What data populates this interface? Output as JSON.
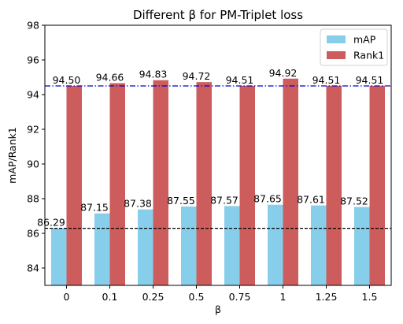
{
  "chart_data": {
    "type": "bar",
    "title": "Different β for PM-Triplet loss",
    "xlabel": "β",
    "ylabel": "mAP/Rank1",
    "categories": [
      "0",
      "0.1",
      "0.25",
      "0.5",
      "0.75",
      "1",
      "1.25",
      "1.5"
    ],
    "ylim": [
      83,
      98
    ],
    "yticks": [
      84,
      86,
      88,
      90,
      92,
      94,
      96,
      98
    ],
    "series": [
      {
        "name": "mAP",
        "color": "#87ceeb",
        "values": [
          86.29,
          87.15,
          87.38,
          87.55,
          87.57,
          87.65,
          87.61,
          87.52
        ],
        "labels": [
          "86.29",
          "87.15",
          "87.38",
          "87.55",
          "87.57",
          "87.65",
          "87.61",
          "87.52"
        ]
      },
      {
        "name": "Rank1",
        "color": "#cd5c5c",
        "values": [
          94.5,
          94.66,
          94.83,
          94.72,
          94.51,
          94.92,
          94.51,
          94.51
        ],
        "labels": [
          "94.50",
          "94.66",
          "94.83",
          "94.72",
          "94.51",
          "94.92",
          "94.51",
          "94.51"
        ]
      }
    ],
    "reference_lines": [
      {
        "y": 94.5,
        "color": "#0000cd",
        "style": "dash-dot"
      },
      {
        "y": 86.29,
        "color": "#000000",
        "style": "dashed"
      }
    ],
    "legend_position": "top-right",
    "grid": false
  }
}
